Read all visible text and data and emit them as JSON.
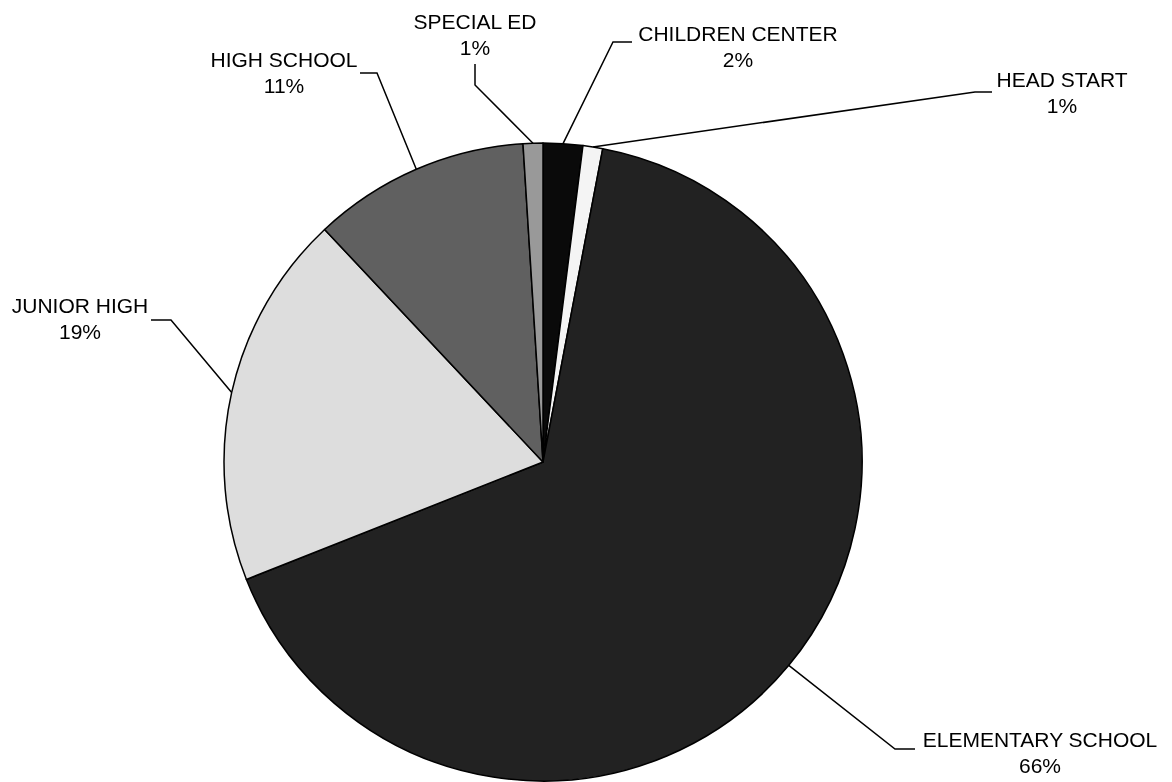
{
  "chart_data": {
    "type": "pie",
    "categories": [
      "CHILDREN CENTER",
      "HEAD START",
      "ELEMENTARY SCHOOL",
      "JUNIOR HIGH",
      "HIGH SCHOOL",
      "SPECIAL ED"
    ],
    "values": [
      2,
      1,
      66,
      19,
      11,
      1
    ],
    "colors": [
      "#0a0a0a",
      "#f4f4f4",
      "#222222",
      "#dddddd",
      "#606060",
      "#999999"
    ],
    "value_labels": [
      "2%",
      "1%",
      "66%",
      "19%",
      "11%",
      "1%"
    ]
  }
}
